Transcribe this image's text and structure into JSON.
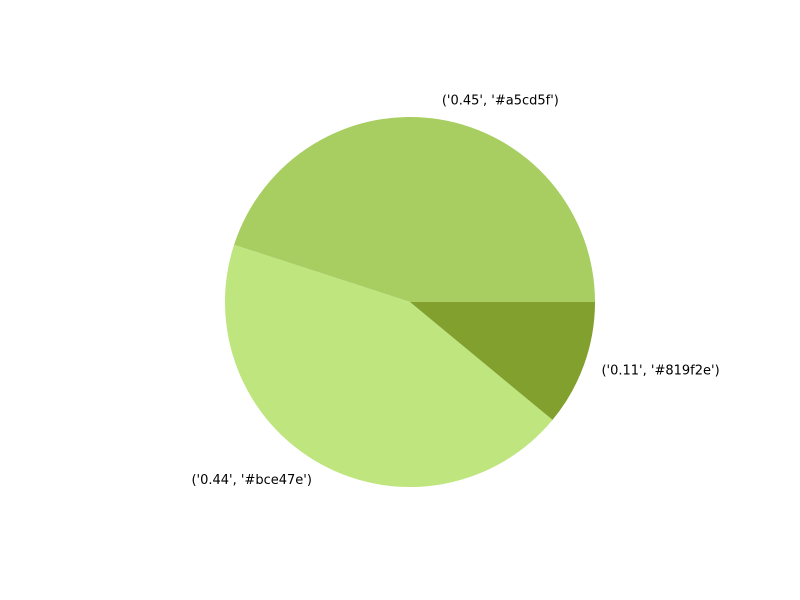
{
  "chart_data": {
    "type": "pie",
    "start_angle_deg": 0,
    "direction": "counterclockwise",
    "slices": [
      {
        "label": "('0.45', '#a5cd5f')",
        "value": 0.45,
        "color": "#a8ce62"
      },
      {
        "label": "('0.44', '#bce47e')",
        "value": 0.44,
        "color": "#bee57e"
      },
      {
        "label": "('0.11', '#819f2e')",
        "value": 0.11,
        "color": "#82a02e"
      }
    ]
  }
}
